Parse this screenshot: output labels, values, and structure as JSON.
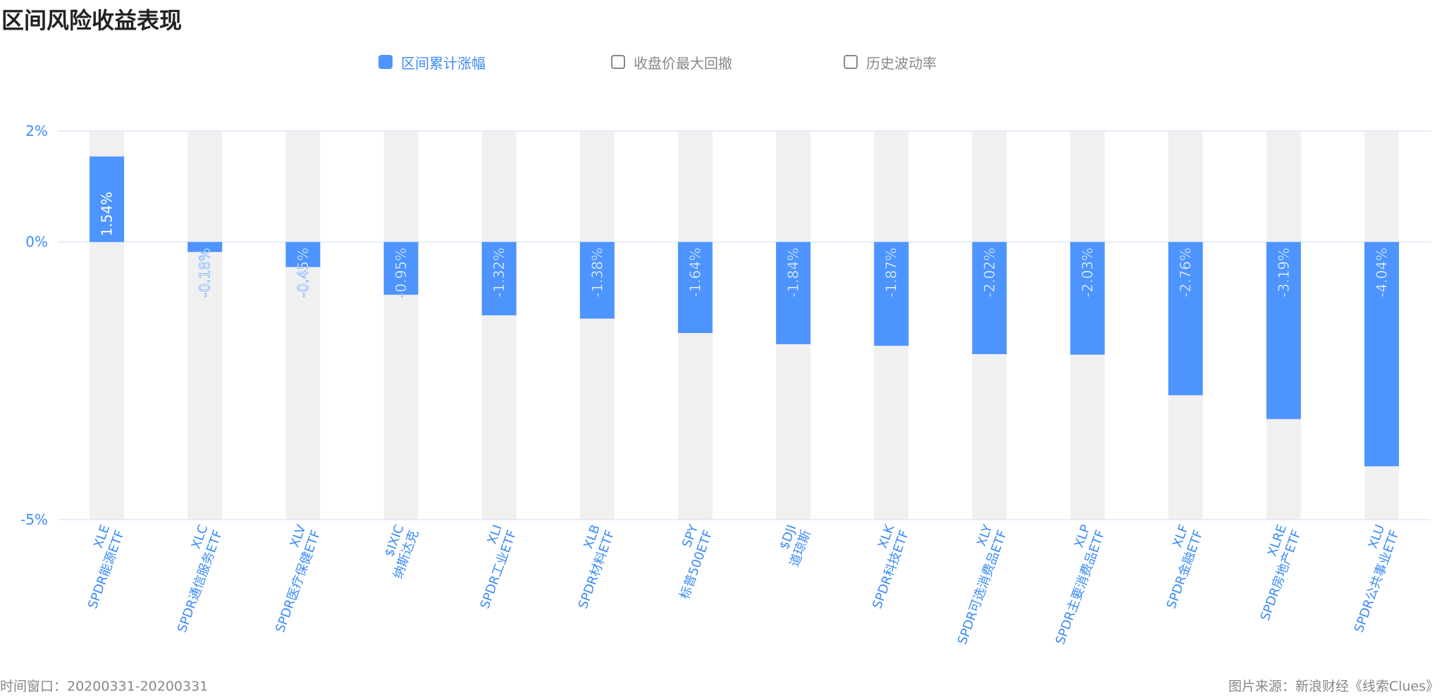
{
  "title": "区间风险收益表现",
  "legend": [
    {
      "label": "区间累计涨幅",
      "active": true
    },
    {
      "label": "收盘价最大回撤",
      "active": false
    },
    {
      "label": "历史波动率",
      "active": false
    }
  ],
  "colors": {
    "bar": "#4d94ff",
    "band": "#f0f0f0",
    "axis_text": "#3c8cf5",
    "grid": "#dbe9f7"
  },
  "chart_data": {
    "type": "bar",
    "categories": [
      {
        "code": "XLE",
        "name": "SPDR能源ETF"
      },
      {
        "code": "XLC",
        "name": "SPDR通信服务ETF"
      },
      {
        "code": "XLV",
        "name": "SPDR医疗保健ETF"
      },
      {
        "code": "$IXIC",
        "name": "纳斯达克"
      },
      {
        "code": "XLI",
        "name": "SPDR工业ETF"
      },
      {
        "code": "XLB",
        "name": "SPDR材料ETF"
      },
      {
        "code": "SPY",
        "name": "标普500ETF"
      },
      {
        "code": "$DJI",
        "name": "道琼斯"
      },
      {
        "code": "XLK",
        "name": "SPDR科技ETF"
      },
      {
        "code": "XLY",
        "name": "SPDR可选消费品ETF"
      },
      {
        "code": "XLP",
        "name": "SPDR主要消费品ETF"
      },
      {
        "code": "XLF",
        "name": "SPDR金融ETF"
      },
      {
        "code": "XLRE",
        "name": "SPDR房地产ETF"
      },
      {
        "code": "XLU",
        "name": "SPDR公共事业ETF"
      }
    ],
    "series": [
      {
        "name": "区间累计涨幅",
        "values": [
          1.54,
          -0.18,
          -0.45,
          -0.95,
          -1.32,
          -1.38,
          -1.64,
          -1.84,
          -1.87,
          -2.02,
          -2.03,
          -2.76,
          -3.19,
          -4.04
        ]
      }
    ],
    "value_labels": [
      "1.54%",
      "-0.18%",
      "-0.45%",
      "-0.95%",
      "-1.32%",
      "-1.38%",
      "-1.64%",
      "-1.84%",
      "-1.87%",
      "-2.02%",
      "-2.03%",
      "-2.76%",
      "-3.19%",
      "-4.04%"
    ],
    "yticks": [
      {
        "value": 2,
        "label": "2%"
      },
      {
        "value": 0,
        "label": "0%"
      },
      {
        "value": -5,
        "label": "-5%"
      }
    ],
    "ylim": [
      -5,
      2
    ],
    "grid": true,
    "legend_position": "top-center"
  },
  "footer": {
    "window": "时间窗口：20200331-20200331",
    "source": "图片来源：新浪财经《线索Clues》"
  }
}
